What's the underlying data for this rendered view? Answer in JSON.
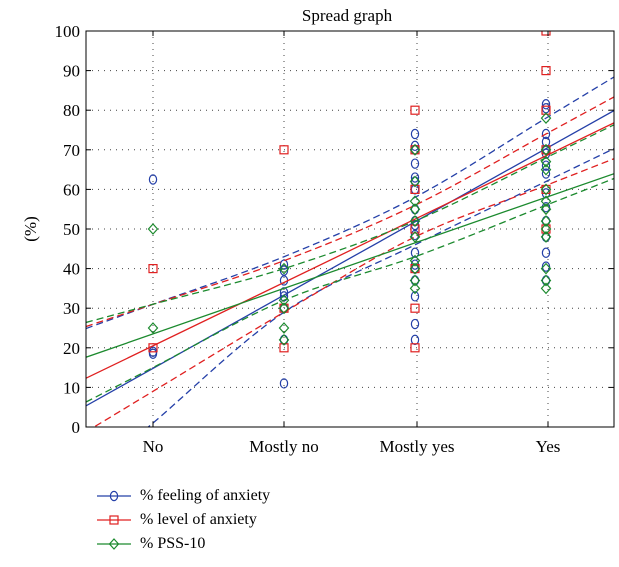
{
  "chart_data": {
    "type": "scatter",
    "title": "Spread graph",
    "xlabel": "",
    "ylabel": "(%)",
    "categories": [
      "No",
      "Mostly no",
      "Mostly yes",
      "Yes"
    ],
    "yticks": [
      0,
      10,
      20,
      30,
      40,
      50,
      60,
      70,
      80,
      90,
      100
    ],
    "ylim": [
      0,
      100
    ],
    "grid": true,
    "legend_position": "below",
    "series": [
      {
        "name": "% feeling of anxiety",
        "color": "#2540a8",
        "marker": "circle",
        "points": [
          [
            0,
            62.5
          ],
          [
            0,
            19
          ],
          [
            0,
            18.5
          ],
          [
            1,
            41
          ],
          [
            1,
            39.5
          ],
          [
            1,
            37
          ],
          [
            1,
            34
          ],
          [
            1,
            33
          ],
          [
            1,
            30
          ],
          [
            1,
            22
          ],
          [
            1,
            11
          ],
          [
            2,
            74
          ],
          [
            2,
            71
          ],
          [
            2,
            70
          ],
          [
            2,
            66.5
          ],
          [
            2,
            63
          ],
          [
            2,
            62
          ],
          [
            2,
            60
          ],
          [
            2,
            55
          ],
          [
            2,
            52
          ],
          [
            2,
            51
          ],
          [
            2,
            48.5
          ],
          [
            2,
            44
          ],
          [
            2,
            41
          ],
          [
            2,
            40
          ],
          [
            2,
            37
          ],
          [
            2,
            33
          ],
          [
            2,
            26
          ],
          [
            2,
            22
          ],
          [
            3,
            81.5
          ],
          [
            3,
            80.5
          ],
          [
            3,
            74
          ],
          [
            3,
            72
          ],
          [
            3,
            70
          ],
          [
            3,
            69
          ],
          [
            3,
            66
          ],
          [
            3,
            64
          ],
          [
            3,
            59
          ],
          [
            3,
            55.5
          ],
          [
            3,
            52
          ],
          [
            3,
            48
          ],
          [
            3,
            44
          ],
          [
            3,
            40.5
          ],
          [
            3,
            37
          ]
        ],
        "fit": {
          "intercept": 14.8,
          "slope": 18.5
        },
        "ci_upper": [
          31,
          43,
          58,
          78
        ],
        "ci_lower": [
          1,
          29,
          46,
          62
        ]
      },
      {
        "name": "% level of anxiety",
        "color": "#e02020",
        "marker": "square",
        "points": [
          [
            0,
            40
          ],
          [
            0,
            20
          ],
          [
            1,
            70
          ],
          [
            1,
            30
          ],
          [
            1,
            20
          ],
          [
            2,
            80
          ],
          [
            2,
            70
          ],
          [
            2,
            60
          ],
          [
            2,
            50
          ],
          [
            2,
            40
          ],
          [
            2,
            30
          ],
          [
            2,
            20
          ],
          [
            3,
            100
          ],
          [
            3,
            90
          ],
          [
            3,
            80
          ],
          [
            3,
            70
          ],
          [
            3,
            60
          ],
          [
            3,
            50
          ]
        ],
        "fit": {
          "intercept": 20.5,
          "slope": 16.0
        },
        "ci_upper": [
          31,
          42,
          56,
          74
        ],
        "ci_lower": [
          9,
          29,
          48,
          61
        ]
      },
      {
        "name": "% PSS-10",
        "color": "#1c8a2e",
        "marker": "diamond",
        "points": [
          [
            0,
            50
          ],
          [
            0,
            25
          ],
          [
            1,
            40
          ],
          [
            1,
            32
          ],
          [
            1,
            30
          ],
          [
            1,
            25
          ],
          [
            1,
            22
          ],
          [
            2,
            70
          ],
          [
            2,
            62
          ],
          [
            2,
            57
          ],
          [
            2,
            55
          ],
          [
            2,
            52
          ],
          [
            2,
            48
          ],
          [
            2,
            42
          ],
          [
            2,
            40
          ],
          [
            2,
            37
          ],
          [
            2,
            35
          ],
          [
            3,
            78
          ],
          [
            3,
            70
          ],
          [
            3,
            67
          ],
          [
            3,
            65
          ],
          [
            3,
            60
          ],
          [
            3,
            57
          ],
          [
            3,
            55
          ],
          [
            3,
            52
          ],
          [
            3,
            50
          ],
          [
            3,
            48
          ],
          [
            3,
            40
          ],
          [
            3,
            37
          ],
          [
            3,
            35
          ]
        ],
        "fit": {
          "intercept": 23.5,
          "slope": 11.5
        },
        "ci_upper": [
          31,
          40,
          52,
          68
        ],
        "ci_lower": [
          15,
          32,
          43,
          56
        ]
      }
    ]
  }
}
